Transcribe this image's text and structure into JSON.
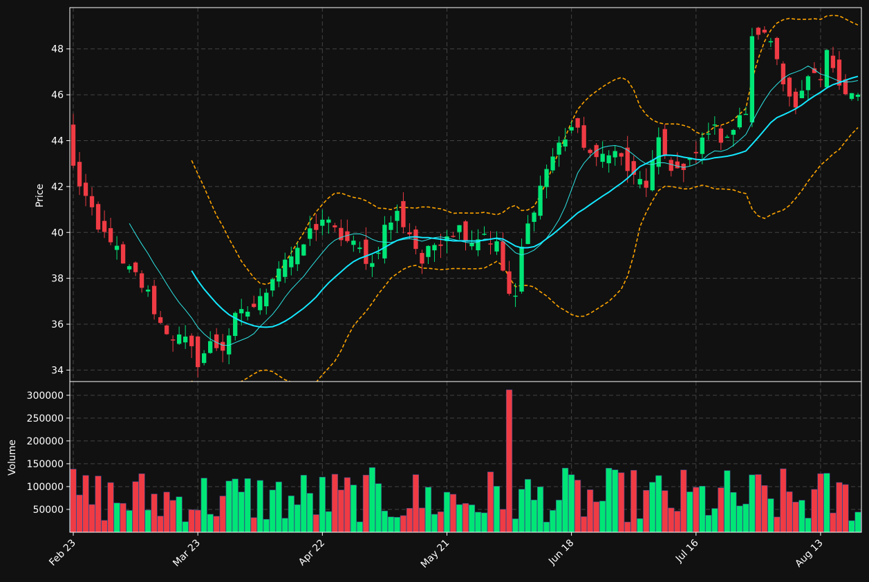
{
  "colors": {
    "background": "#111111",
    "axes_edge": "#ffffff",
    "grid": "#444444",
    "text": "#ffffff",
    "up": "#00e676",
    "down": "#ef3b44",
    "ma_fast": "#2ee6e6",
    "ma_slow": "#14e8ff",
    "bands": "#ffa500"
  },
  "chart_data": {
    "type": "candlestick",
    "price_panel": {
      "ylabel": "Price",
      "ylim": [
        33.5,
        49.8
      ],
      "yticks": [
        34,
        36,
        38,
        40,
        42,
        44,
        46,
        48
      ],
      "grid": true
    },
    "volume_panel": {
      "ylabel": "Volume",
      "ylim": [
        0,
        330000
      ],
      "yticks": [
        50000,
        100000,
        150000,
        200000,
        250000,
        300000
      ],
      "grid": true
    },
    "xticks": [
      {
        "index": 0,
        "label": "Feb 23"
      },
      {
        "index": 20,
        "label": "Mar 23"
      },
      {
        "index": 40,
        "label": "Apr 22"
      },
      {
        "index": 60,
        "label": "May 21"
      },
      {
        "index": 80,
        "label": "Jun 18"
      },
      {
        "index": 100,
        "label": "Jul 16"
      },
      {
        "index": 120,
        "label": "Aug 13"
      }
    ],
    "num_bars": 127,
    "close_anchors": [
      [
        0,
        42.8
      ],
      [
        2,
        41.5
      ],
      [
        4,
        40.0
      ],
      [
        6,
        39.8
      ],
      [
        8,
        38.5
      ],
      [
        10,
        38.1
      ],
      [
        12,
        37.3
      ],
      [
        14,
        36.0
      ],
      [
        16,
        35.5
      ],
      [
        18,
        35.2
      ],
      [
        20,
        34.4
      ],
      [
        22,
        35.1
      ],
      [
        24,
        35.0
      ],
      [
        26,
        36.2
      ],
      [
        28,
        36.6
      ],
      [
        30,
        37.0
      ],
      [
        32,
        38.2
      ],
      [
        34,
        38.9
      ],
      [
        36,
        39.0
      ],
      [
        38,
        40.0
      ],
      [
        40,
        40.6
      ],
      [
        42,
        40.0
      ],
      [
        44,
        39.6
      ],
      [
        46,
        39.2
      ],
      [
        48,
        38.6
      ],
      [
        50,
        40.2
      ],
      [
        52,
        40.8
      ],
      [
        54,
        40.0
      ],
      [
        56,
        38.7
      ],
      [
        58,
        39.5
      ],
      [
        60,
        40.0
      ],
      [
        62,
        40.2
      ],
      [
        64,
        39.7
      ],
      [
        66,
        40.0
      ],
      [
        68,
        39.4
      ],
      [
        70,
        37.3
      ],
      [
        71,
        37.0
      ],
      [
        72,
        39.3
      ],
      [
        74,
        41.2
      ],
      [
        76,
        42.8
      ],
      [
        78,
        43.8
      ],
      [
        80,
        44.6
      ],
      [
        82,
        43.9
      ],
      [
        84,
        43.0
      ],
      [
        86,
        43.7
      ],
      [
        88,
        43.2
      ],
      [
        90,
        42.3
      ],
      [
        92,
        42.1
      ],
      [
        94,
        43.8
      ],
      [
        96,
        42.9
      ],
      [
        98,
        42.6
      ],
      [
        100,
        43.4
      ],
      [
        102,
        44.6
      ],
      [
        104,
        44.2
      ],
      [
        106,
        44.5
      ],
      [
        108,
        45.3
      ],
      [
        109,
        48.3
      ],
      [
        110,
        48.8
      ],
      [
        111,
        48.5
      ],
      [
        112,
        48.4
      ],
      [
        114,
        46.8
      ],
      [
        116,
        45.3
      ],
      [
        118,
        46.6
      ],
      [
        120,
        46.6
      ],
      [
        121,
        47.7
      ],
      [
        122,
        47.3
      ],
      [
        124,
        46.2
      ],
      [
        126,
        45.9
      ]
    ],
    "volume_spike": {
      "index": 70,
      "value": 312000
    },
    "moving_averages": [
      {
        "window": 10,
        "style": "solid-thin"
      },
      {
        "window": 20,
        "style": "solid"
      }
    ],
    "bollinger": {
      "window": 20,
      "num_std": 2,
      "style": "dashed"
    }
  },
  "axis_labels": {
    "price": "Price",
    "volume": "Volume"
  }
}
